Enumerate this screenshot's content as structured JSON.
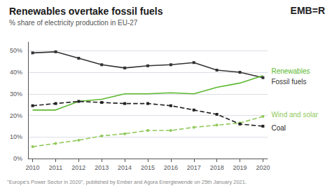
{
  "chart_data": {
    "type": "line",
    "title": "Renewables overtake fossil fuels",
    "subtitle": "% share of electricity production in EU-27",
    "footnote": "\"Europe's Power Sector in 2020\", published by Ember and Agora Energiewende on 25th January 2021.",
    "annotations": [
      "EMB=R"
    ],
    "x": [
      2010,
      2011,
      2012,
      2013,
      2014,
      2015,
      2016,
      2017,
      2018,
      2019,
      2020
    ],
    "series": [
      {
        "name": "Fossil fuels",
        "color": "#333333",
        "marker": "square",
        "line_style": "solid",
        "values": [
          49.0,
          49.5,
          46.5,
          43.5,
          42.0,
          43.0,
          43.5,
          44.5,
          41.0,
          40.0,
          37.5
        ]
      },
      {
        "name": "Renewables",
        "color": "#5cb82e",
        "line_style": "solid",
        "values": [
          22.5,
          22.5,
          26.5,
          27.5,
          30.0,
          30.0,
          30.5,
          30.0,
          33.0,
          35.0,
          38.5
        ]
      },
      {
        "name": "Wind and solar",
        "color": "#90c95a",
        "marker": "circle",
        "line_style": "dashed",
        "values": [
          5.5,
          7.0,
          8.5,
          10.5,
          11.5,
          13.0,
          13.0,
          14.5,
          15.5,
          16.5,
          19.5
        ]
      },
      {
        "name": "Coal",
        "color": "#222222",
        "marker": "square",
        "line_style": "dashed",
        "values": [
          24.5,
          25.5,
          26.5,
          26.0,
          25.5,
          25.5,
          24.5,
          22.5,
          20.5,
          16.0,
          15.0
        ]
      }
    ],
    "xlim": [
      2009.8,
      2020.2
    ],
    "xticks": [
      2010,
      2011,
      2012,
      2013,
      2014,
      2015,
      2016,
      2017,
      2018,
      2019,
      2020
    ],
    "ylim": [
      0,
      54
    ],
    "yticks": [
      {
        "value": 0,
        "label": "0%"
      },
      {
        "value": 10,
        "label": "10%"
      },
      {
        "value": 20,
        "label": "20%"
      },
      {
        "value": 30,
        "label": "30%"
      },
      {
        "value": 40,
        "label": "40%"
      },
      {
        "value": 50,
        "label": "50%"
      }
    ],
    "grid": true
  }
}
